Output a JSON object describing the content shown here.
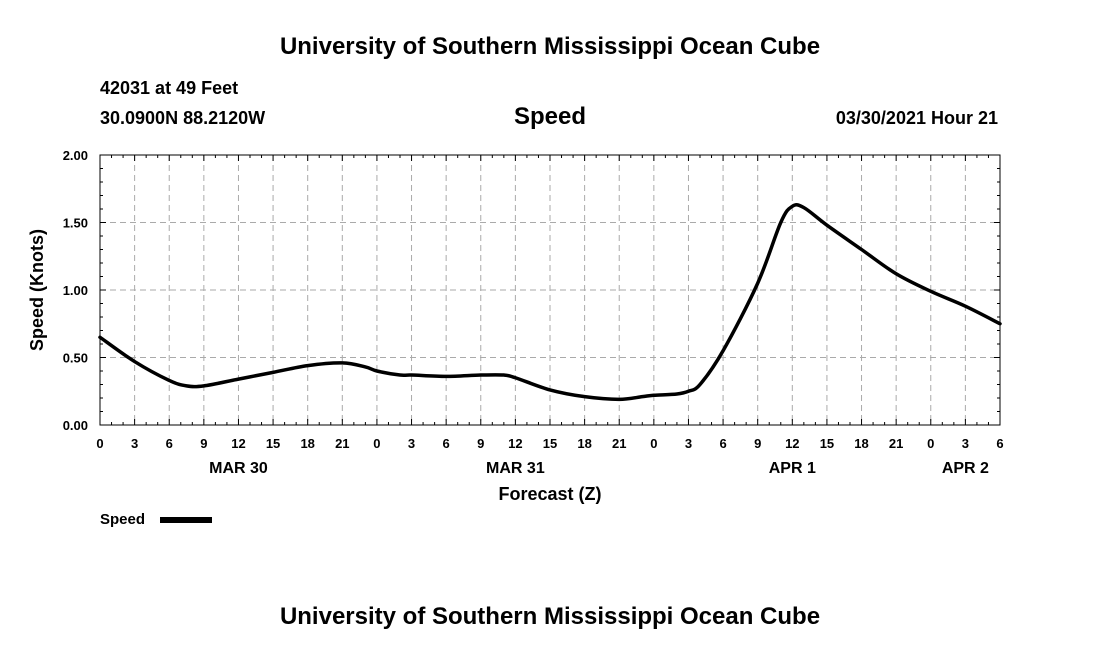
{
  "header": {
    "title_top": "University of Southern Mississippi Ocean Cube",
    "title_bottom": "University of Southern Mississippi Ocean Cube",
    "station_line1": "42031 at 49 Feet",
    "station_line2": "30.0900N  88.2120W",
    "chart_title": "Speed",
    "timestamp": "03/30/2021 Hour 21"
  },
  "chart_data": {
    "type": "line",
    "title": "Speed",
    "xlabel": "Forecast (Z)",
    "ylabel": "Speed (Knots)",
    "ylim": [
      0,
      2
    ],
    "xlim": [
      0,
      78
    ],
    "x_unit": "hours from 00Z MAR 30",
    "y_ticks": [
      "0.00",
      "0.50",
      "1.00",
      "1.50",
      "2.00"
    ],
    "x_tick_labels": [
      "0",
      "3",
      "6",
      "9",
      "12",
      "15",
      "18",
      "21",
      "0",
      "3",
      "6",
      "9",
      "12",
      "15",
      "18",
      "21",
      "0",
      "3",
      "6",
      "9",
      "12",
      "15",
      "18",
      "21",
      "0",
      "3",
      "6"
    ],
    "date_labels": [
      {
        "label": "MAR 30",
        "hour": 12
      },
      {
        "label": "MAR 31",
        "hour": 36
      },
      {
        "label": "APR 1",
        "hour": 60
      },
      {
        "label": "APR 2",
        "hour": 75
      }
    ],
    "grid": true,
    "legend": {
      "label": "Speed",
      "placement": "bottom-left"
    },
    "series": [
      {
        "name": "Speed",
        "color": "#000000",
        "x": [
          0,
          3,
          6,
          7.5,
          9,
          12,
          15,
          18,
          21,
          23,
          24,
          26,
          27,
          30,
          33,
          35,
          36,
          39,
          42,
          45,
          47,
          48,
          50,
          51,
          52,
          54,
          57,
          59,
          60,
          61,
          63,
          66,
          69,
          72,
          75,
          78
        ],
        "y": [
          0.65,
          0.47,
          0.33,
          0.29,
          0.29,
          0.34,
          0.39,
          0.44,
          0.46,
          0.43,
          0.4,
          0.37,
          0.37,
          0.36,
          0.37,
          0.37,
          0.35,
          0.26,
          0.21,
          0.19,
          0.21,
          0.22,
          0.23,
          0.25,
          0.3,
          0.55,
          1.05,
          1.5,
          1.62,
          1.61,
          1.48,
          1.3,
          1.12,
          0.99,
          0.88,
          0.75
        ]
      }
    ]
  }
}
